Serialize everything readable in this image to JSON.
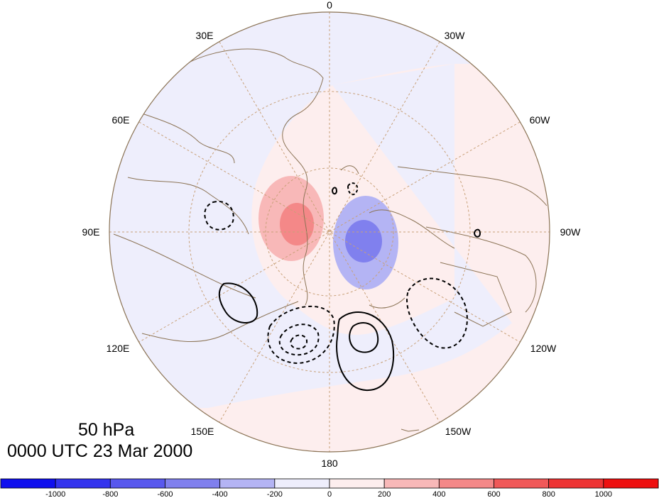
{
  "plot": {
    "level_label": "50 hPa",
    "time_label": "0000 UTC 23 Mar 2000"
  },
  "longitude_labels": {
    "lon_0": "0",
    "lon_30w": "30W",
    "lon_60w": "60W",
    "lon_90w": "90W",
    "lon_120w": "120W",
    "lon_150w": "150W",
    "lon_180": "180",
    "lon_150e": "150E",
    "lon_120e": "120E",
    "lon_90e": "90E",
    "lon_60e": "60E",
    "lon_30e": "30E"
  },
  "colorbar": {
    "ticks": [
      "-1000",
      "-800",
      "-600",
      "-400",
      "-200",
      "0",
      "200",
      "400",
      "600",
      "800",
      "1000"
    ],
    "colors": [
      "#1010ee",
      "#3434ee",
      "#5858ee",
      "#8080ee",
      "#b4b4f4",
      "#eeeefc",
      "#fdeeee",
      "#f8b8b8",
      "#f48888",
      "#f05858",
      "#ee3434",
      "#ee1010"
    ]
  },
  "colors": {
    "land_outline": "#8b7355",
    "grid_line": "#c8a078",
    "background_negative": "#eeeefc",
    "background_positive": "#fdeeee"
  }
}
